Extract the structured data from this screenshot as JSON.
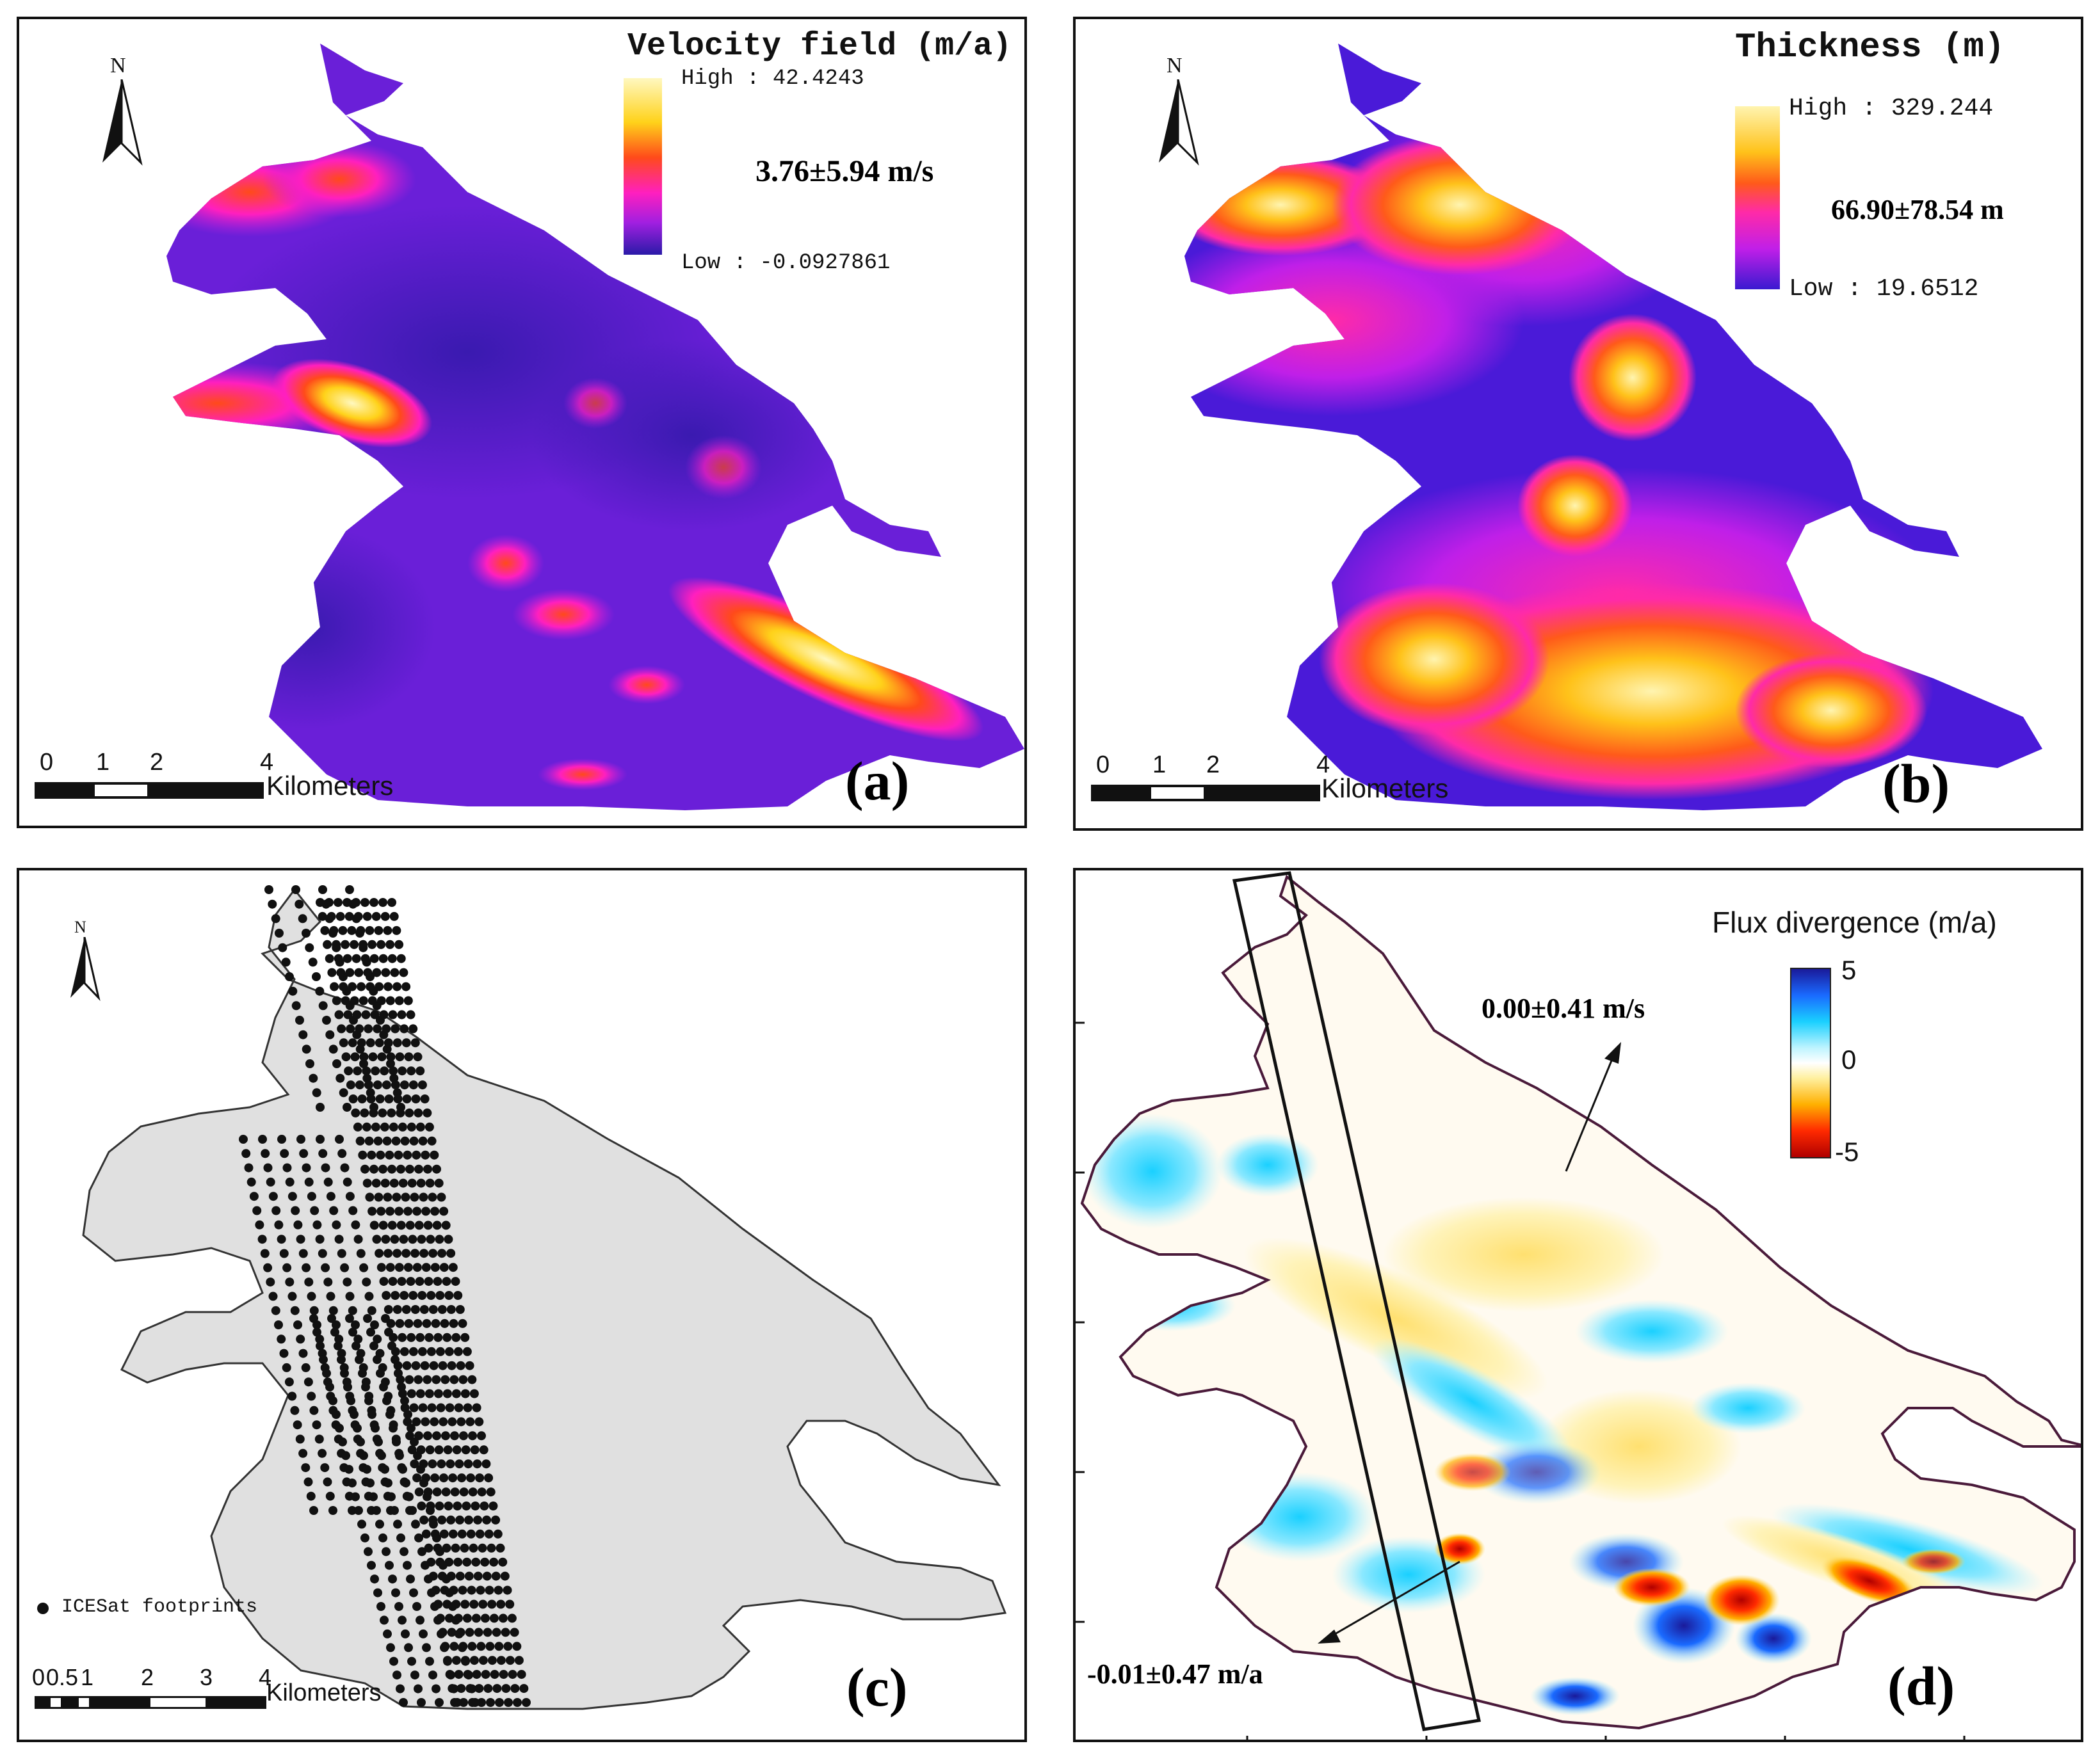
{
  "panels": {
    "a": {
      "label": "(a)",
      "legend_title": "Velocity field (m/a)",
      "legend_high": "High : 42.4243",
      "legend_low": "Low : -0.0927861",
      "stat": "3.76±5.94 m/s",
      "scale_ticks": [
        "0",
        "1",
        "2",
        "4"
      ],
      "scale_unit": "Kilometers",
      "north": "N",
      "colors": [
        "#2a1aa8",
        "#8a1fe0",
        "#ff1fbf",
        "#ff4a1a",
        "#ffd21a",
        "#fff8c0"
      ]
    },
    "b": {
      "label": "(b)",
      "legend_title": "Thickness (m)",
      "legend_high": "High : 329.244",
      "legend_low": "Low : 19.6512",
      "stat": "66.90±78.54 m",
      "scale_ticks": [
        "0",
        "1",
        "2",
        "4"
      ],
      "scale_unit": "Kilometers",
      "north": "N",
      "colors": [
        "#3a1ad0",
        "#9a1fe8",
        "#ff2aa8",
        "#ff5a1a",
        "#ffc21a",
        "#fff4b0"
      ]
    },
    "c": {
      "label": "(c)",
      "legend_item": "ICESat footprints",
      "scale_ticks": [
        "0",
        "0.5",
        "1",
        "2",
        "3",
        "4"
      ],
      "scale_unit": "Kilometers",
      "north": "N",
      "colors": {
        "fill": "#e0e0e0",
        "points": "#111111"
      }
    },
    "d": {
      "label": "(d)",
      "legend_title": "Flux divergence (m/a)",
      "legend_ticks": [
        "5",
        "0",
        "-5"
      ],
      "stat_upper": "0.00±0.41 m/s",
      "stat_lower": "-0.01±0.47 m/a",
      "colors": [
        "#1a1a9a",
        "#1aa8ff",
        "#bff4ff",
        "#ffffff",
        "#fff0a0",
        "#ffb000",
        "#ff2a00",
        "#b00000"
      ]
    }
  }
}
